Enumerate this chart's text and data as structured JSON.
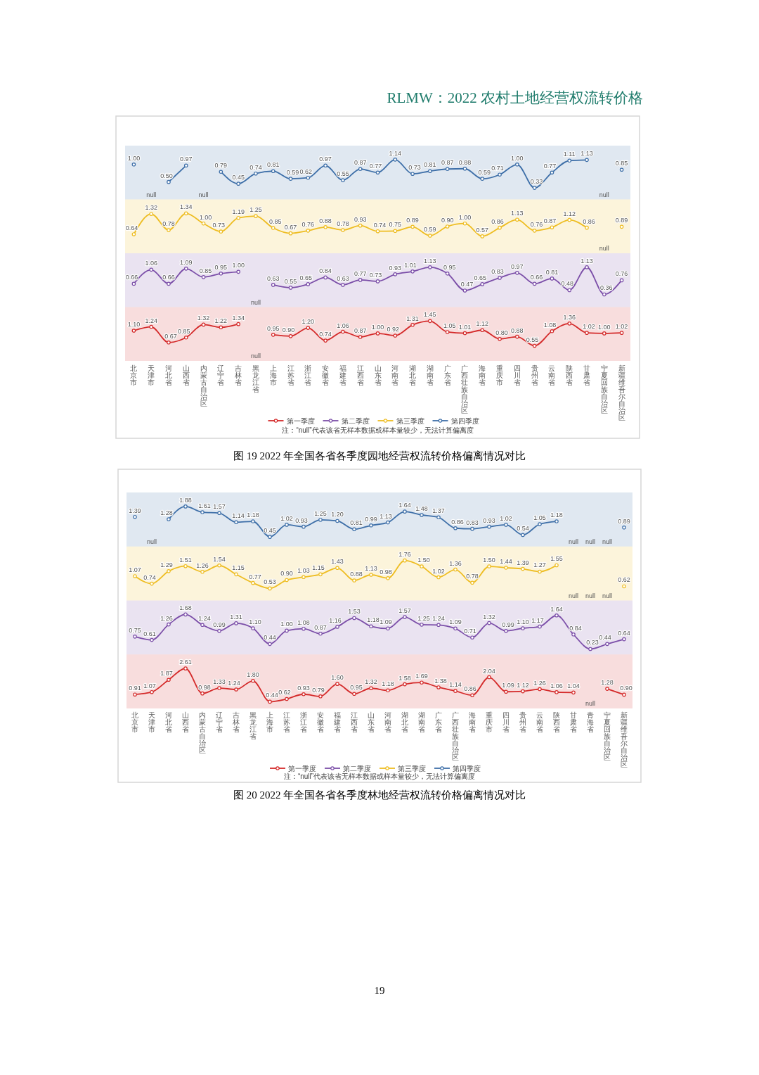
{
  "chart_data": [
    {
      "type": "line",
      "legend": "bottom",
      "marker": "circle",
      "tick_labels": false,
      "annotations": [
        "RLMW：2022 农村土地经营权流转价格"
      ],
      "categories": [
        "北京市",
        "天津市",
        "河北省",
        "山西省",
        "内蒙古自治区",
        "辽宁省",
        "吉林省",
        "黑龙江省",
        "上海市",
        "江苏省",
        "浙江省",
        "安徽省",
        "福建省",
        "江西省",
        "山东省",
        "河南省",
        "湖北省",
        "湖南省",
        "广东省",
        "广西壮族自治区",
        "海南省",
        "重庆市",
        "四川省",
        "贵州省",
        "云南省",
        "陕西省",
        "甘肃省",
        "宁夏回族自治区",
        "新疆维吾尔自治区"
      ],
      "series": [
        {
          "name": "第四季度",
          "color": "#3e6fa8",
          "values": [
            1.0,
            null,
            0.5,
            0.97,
            null,
            0.79,
            0.45,
            0.74,
            0.81,
            0.59,
            0.62,
            0.97,
            0.55,
            0.87,
            0.77,
            1.14,
            0.73,
            0.81,
            0.87,
            0.88,
            0.59,
            0.71,
            1.0,
            0.33,
            0.77,
            1.11,
            1.13,
            null,
            0.85
          ],
          "value_labels": [
            "1.00",
            "null",
            "0.50",
            "0.97",
            "null",
            "0.79",
            "0.45",
            "0.74",
            "0.81",
            "0.59",
            "0.62",
            "0.97",
            "0.55",
            "0.87",
            "0.77",
            "1.14",
            "0.73",
            "0.81",
            "0.87",
            "0.88",
            "0.59",
            "0.71",
            "1.00",
            "0.33",
            "0.77",
            "1.11",
            "1.13",
            "null",
            "0.85"
          ]
        }
      ]
    },
    {
      "type": "line",
      "legend": "bottom",
      "marker": "circle",
      "tick_labels": false,
      "categories": [
        "北京市",
        "天津市",
        "河北省",
        "山西省",
        "内蒙古自治区",
        "辽宁省",
        "吉林省",
        "黑龙江省",
        "上海市",
        "江苏省",
        "浙江省",
        "安徽省",
        "福建省",
        "江西省",
        "山东省",
        "河南省",
        "湖北省",
        "湖南省",
        "广东省",
        "广西壮族自治区",
        "海南省",
        "重庆市",
        "四川省",
        "贵州省",
        "云南省",
        "陕西省",
        "甘肃省",
        "宁夏回族自治区",
        "新疆维吾尔自治区"
      ],
      "series": [
        {
          "name": "第三季度",
          "color": "#eebd22",
          "values": [
            0.64,
            1.32,
            0.78,
            1.34,
            1.0,
            0.73,
            1.19,
            1.25,
            0.85,
            0.67,
            0.76,
            0.88,
            0.78,
            0.93,
            0.74,
            0.75,
            0.89,
            0.59,
            0.9,
            1.0,
            0.57,
            0.86,
            1.13,
            0.76,
            0.87,
            1.12,
            0.86,
            null,
            0.89
          ],
          "value_labels": [
            "0.64",
            "1.32",
            "0.78",
            "1.34",
            "1.00",
            "0.73",
            "1.19",
            "1.25",
            "0.85",
            "0.67",
            "0.76",
            "0.88",
            "0.78",
            "0.93",
            "0.74",
            "0.75",
            "0.89",
            "0.59",
            "0.90",
            "1.00",
            "0.57",
            "0.86",
            "1.13",
            "0.76",
            "0.87",
            "1.12",
            "0.86",
            "null",
            "0.89"
          ]
        }
      ]
    },
    {
      "type": "line",
      "legend": "bottom",
      "marker": "circle",
      "tick_labels": false,
      "categories": [
        "北京市",
        "天津市",
        "河北省",
        "山西省",
        "内蒙古自治区",
        "辽宁省",
        "吉林省",
        "黑龙江省",
        "上海市",
        "江苏省",
        "浙江省",
        "安徽省",
        "福建省",
        "江西省",
        "山东省",
        "河南省",
        "湖北省",
        "湖南省",
        "广东省",
        "广西壮族自治区",
        "海南省",
        "重庆市",
        "四川省",
        "贵州省",
        "云南省",
        "陕西省",
        "甘肃省",
        "宁夏回族自治区",
        "新疆维吾尔自治区"
      ],
      "series": [
        {
          "name": "第二季度",
          "color": "#7b4ea8",
          "values": [
            0.66,
            1.06,
            0.66,
            1.09,
            0.85,
            0.95,
            1.0,
            null,
            0.63,
            0.55,
            0.65,
            0.84,
            0.63,
            0.77,
            0.73,
            0.93,
            1.01,
            1.13,
            0.95,
            0.47,
            0.65,
            0.83,
            0.97,
            0.66,
            0.81,
            0.48,
            1.13,
            0.36,
            0.76
          ],
          "value_labels": [
            "0.66",
            "1.06",
            "0.66",
            "1.09",
            "0.85",
            "0.95",
            "1.00",
            "null",
            "0.63",
            "0.55",
            "0.65",
            "0.84",
            "0.63",
            "0.77",
            "0.73",
            "0.93",
            "1.01",
            "1.13",
            "0.95",
            "0.47",
            "0.65",
            "0.83",
            "0.97",
            "0.66",
            "0.81",
            "0.48",
            "1.13",
            "0.36",
            "0.76"
          ]
        }
      ]
    },
    {
      "type": "line",
      "title": "图 19 2022 年全国各省各季度园地经营权流转价格偏离情况对比",
      "legend": "bottom",
      "marker": "circle",
      "annotations": [
        "注：“null”代表该省无样本数据或样本量较少，无法计算偏离度"
      ],
      "categories": [
        "北京市",
        "天津市",
        "河北省",
        "山西省",
        "内蒙古自治区",
        "辽宁省",
        "吉林省",
        "黑龙江省",
        "上海市",
        "江苏省",
        "浙江省",
        "安徽省",
        "福建省",
        "江西省",
        "山东省",
        "河南省",
        "湖北省",
        "湖南省",
        "广东省",
        "广西壮族自治区",
        "海南省",
        "重庆市",
        "四川省",
        "贵州省",
        "云南省",
        "陕西省",
        "甘肃省",
        "宁夏回族自治区",
        "新疆维吾尔自治区"
      ],
      "series": [
        {
          "name": "第一季度",
          "color": "#d42a2a",
          "values": [
            1.1,
            1.24,
            0.67,
            0.85,
            1.32,
            1.22,
            1.34,
            null,
            0.95,
            0.9,
            1.2,
            0.74,
            1.06,
            0.87,
            1.0,
            0.92,
            1.31,
            1.45,
            1.05,
            1.01,
            1.12,
            0.8,
            0.88,
            0.55,
            1.08,
            1.36,
            1.02,
            1.0,
            1.02
          ],
          "value_labels": [
            "1.10",
            "1.24",
            "0.67",
            "0.85",
            "1.32",
            "1.22",
            "1.34",
            "null",
            "0.95",
            "0.90",
            "1.20",
            "0.74",
            "1.06",
            "0.87",
            "1.00",
            "0.92",
            "1.31",
            "1.45",
            "1.05",
            "1.01",
            "1.12",
            "0.80",
            "0.88",
            "0.55",
            "1.08",
            "1.36",
            "1.02",
            "1.00",
            "1.02"
          ]
        }
      ]
    },
    {
      "type": "line",
      "legend": "bottom",
      "marker": "circle",
      "tick_labels": false,
      "categories": [
        "北京市",
        "天津市",
        "河北省",
        "山西省",
        "内蒙古自治区",
        "辽宁省",
        "吉林省",
        "黑龙江省",
        "上海市",
        "江苏省",
        "浙江省",
        "安徽省",
        "福建省",
        "江西省",
        "山东省",
        "河南省",
        "湖北省",
        "湖南省",
        "广东省",
        "广西壮族自治区",
        "海南省",
        "重庆市",
        "四川省",
        "贵州省",
        "云南省",
        "陕西省",
        "甘肃省",
        "青海省",
        "宁夏回族自治区",
        "新疆维吾尔自治区"
      ],
      "series": [
        {
          "name": "第四季度",
          "color": "#3e6fa8",
          "values": [
            1.39,
            null,
            1.28,
            1.88,
            1.61,
            1.57,
            1.14,
            1.18,
            0.45,
            1.02,
            0.93,
            1.25,
            1.2,
            0.81,
            0.99,
            1.13,
            1.64,
            1.48,
            1.37,
            0.86,
            0.83,
            0.93,
            1.02,
            0.54,
            1.05,
            1.18,
            null,
            null,
            null,
            0.89
          ],
          "value_labels": [
            "1.39",
            "null",
            "1.28",
            "1.88",
            "1.61",
            "1.57",
            "1.14",
            "1.18",
            "0.45",
            "1.02",
            "0.93",
            "1.25",
            "1.20",
            "0.81",
            "0.99",
            "1.13",
            "1.64",
            "1.48",
            "1.37",
            "0.86",
            "0.83",
            "0.93",
            "1.02",
            "0.54",
            "1.05",
            "1.18",
            "null",
            "null",
            "null",
            "0.89"
          ]
        }
      ]
    },
    {
      "type": "line",
      "legend": "bottom",
      "marker": "circle",
      "tick_labels": false,
      "categories": [
        "北京市",
        "天津市",
        "河北省",
        "山西省",
        "内蒙古自治区",
        "辽宁省",
        "吉林省",
        "黑龙江省",
        "上海市",
        "江苏省",
        "浙江省",
        "安徽省",
        "福建省",
        "江西省",
        "山东省",
        "河南省",
        "湖北省",
        "湖南省",
        "广东省",
        "广西壮族自治区",
        "海南省",
        "重庆市",
        "四川省",
        "贵州省",
        "云南省",
        "陕西省",
        "甘肃省",
        "青海省",
        "宁夏回族自治区",
        "新疆维吾尔自治区"
      ],
      "series": [
        {
          "name": "第三季度",
          "color": "#eebd22",
          "values": [
            1.07,
            0.74,
            1.29,
            1.51,
            1.26,
            1.54,
            1.15,
            0.77,
            0.53,
            0.9,
            1.03,
            1.15,
            1.43,
            0.88,
            1.13,
            0.98,
            1.76,
            1.5,
            1.02,
            1.36,
            0.78,
            1.5,
            1.44,
            1.39,
            1.27,
            1.55,
            null,
            null,
            null,
            0.62
          ],
          "value_labels": [
            "1.07",
            "0.74",
            "1.29",
            "1.51",
            "1.26",
            "1.54",
            "1.15",
            "0.77",
            "0.53",
            "0.90",
            "1.03",
            "1.15",
            "1.43",
            "0.88",
            "1.13",
            "0.98",
            "1.76",
            "1.50",
            "1.02",
            "1.36",
            "0.78",
            "1.50",
            "1.44",
            "1.39",
            "1.27",
            "1.55",
            "null",
            "null",
            "null",
            "0.62"
          ]
        }
      ]
    },
    {
      "type": "line",
      "legend": "bottom",
      "marker": "circle",
      "tick_labels": false,
      "categories": [
        "北京市",
        "天津市",
        "河北省",
        "山西省",
        "内蒙古自治区",
        "辽宁省",
        "吉林省",
        "黑龙江省",
        "上海市",
        "江苏省",
        "浙江省",
        "安徽省",
        "福建省",
        "江西省",
        "山东省",
        "河南省",
        "湖北省",
        "湖南省",
        "广东省",
        "广西壮族自治区",
        "海南省",
        "重庆市",
        "四川省",
        "贵州省",
        "云南省",
        "陕西省",
        "甘肃省",
        "青海省",
        "宁夏回族自治区",
        "新疆维吾尔自治区"
      ],
      "series": [
        {
          "name": "第二季度",
          "color": "#7b4ea8",
          "values": [
            0.75,
            0.61,
            1.26,
            1.68,
            1.24,
            0.99,
            1.31,
            1.1,
            0.44,
            1.0,
            1.08,
            0.87,
            1.16,
            1.53,
            1.18,
            1.09,
            1.57,
            1.25,
            1.24,
            1.09,
            0.71,
            1.32,
            0.99,
            1.1,
            1.17,
            1.64,
            0.84,
            0.23,
            0.44,
            0.64
          ],
          "value_labels": [
            "0.75",
            "0.61",
            "1.26",
            "1.68",
            "1.24",
            "0.99",
            "1.31",
            "1.10",
            "0.44",
            "1.00",
            "1.08",
            "0.87",
            "1.16",
            "1.53",
            "1.18",
            "1.09",
            "1.57",
            "1.25",
            "1.24",
            "1.09",
            "0.71",
            "1.32",
            "0.99",
            "1.10",
            "1.17",
            "1.64",
            "0.84",
            "0.23",
            "0.44",
            "0.64"
          ]
        }
      ]
    },
    {
      "type": "line",
      "title": "图 20 2022 年全国各省各季度林地经营权流转价格偏离情况对比",
      "legend": "bottom",
      "marker": "circle",
      "annotations": [
        "注：“null”代表该省无样本数据或样本量较少，无法计算偏离度",
        "19"
      ],
      "categories": [
        "北京市",
        "天津市",
        "河北省",
        "山西省",
        "内蒙古自治区",
        "辽宁省",
        "吉林省",
        "黑龙江省",
        "上海市",
        "江苏省",
        "浙江省",
        "安徽省",
        "福建省",
        "江西省",
        "山东省",
        "河南省",
        "湖北省",
        "湖南省",
        "广东省",
        "广西壮族自治区",
        "海南省",
        "重庆市",
        "四川省",
        "贵州省",
        "云南省",
        "陕西省",
        "甘肃省",
        "青海省",
        "宁夏回族自治区",
        "新疆维吾尔自治区"
      ],
      "series": [
        {
          "name": "第一季度",
          "color": "#d42a2a",
          "values": [
            0.91,
            1.07,
            1.87,
            2.61,
            0.98,
            1.33,
            1.24,
            1.8,
            0.44,
            0.62,
            0.93,
            0.79,
            1.6,
            0.95,
            1.32,
            1.18,
            1.58,
            1.69,
            1.38,
            1.14,
            0.86,
            2.04,
            1.09,
            1.12,
            1.26,
            1.06,
            1.04,
            null,
            1.28,
            0.9
          ],
          "value_labels": [
            "0.91",
            "1.07",
            "1.87",
            "2.61",
            "0.98",
            "1.33",
            "1.24",
            "1.80",
            "0.44",
            "0.62",
            "0.93",
            "0.79",
            "1.60",
            "0.95",
            "1.32",
            "1.18",
            "1.58",
            "1.69",
            "1.38",
            "1.14",
            "0.86",
            "2.04",
            "1.09",
            "1.12",
            "1.26",
            "1.06",
            "1.04",
            "null",
            "1.28",
            "0.90"
          ]
        }
      ]
    }
  ]
}
